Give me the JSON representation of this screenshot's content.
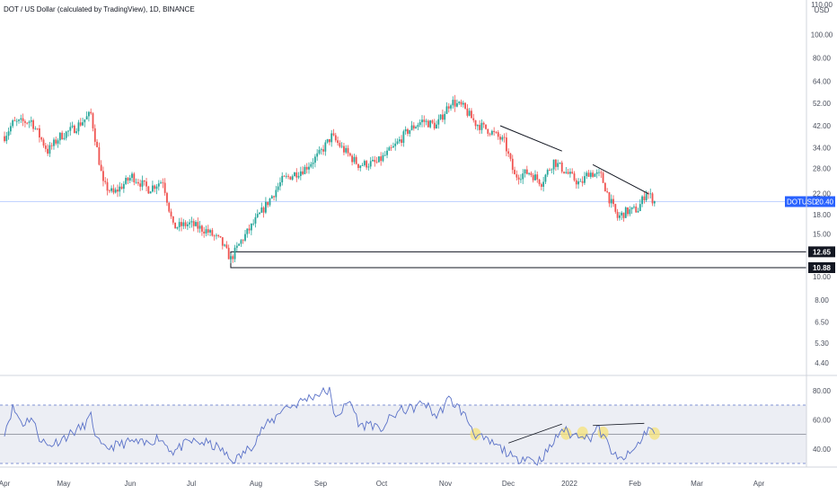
{
  "header": {
    "title": "DOT / US Dollar (calculated by TradingView), 1D, BINANCE",
    "currency": "USD"
  },
  "colors": {
    "up": "#26a69a",
    "down": "#ef5350",
    "price_line": "#2962ff",
    "rsi_line": "#5b72c8",
    "rsi_band_fill": "#eceef4",
    "rsi_band_border": "#5b72c8",
    "highlight": "#f5e27a"
  },
  "chart_data": [
    {
      "type": "candlestick",
      "title": "DOT / US Dollar (calculated by TradingView), 1D, BINANCE",
      "scale": "log",
      "y_ticks": [
        "110.00",
        "100.00",
        "80.00",
        "64.00",
        "52.00",
        "42.00",
        "34.00",
        "28.00",
        "22.00",
        "18.00",
        "15.00",
        "10.00",
        "8.00",
        "6.50",
        "5.30",
        "4.40"
      ],
      "x_ticks": [
        "Apr",
        "May",
        "Jun",
        "Jul",
        "Aug",
        "Sep",
        "Oct",
        "Nov",
        "Dec",
        "2022",
        "Feb",
        "Mar",
        "Apr"
      ],
      "current_price": {
        "label": "DOTUSD",
        "value": "20.40"
      },
      "levels": [
        {
          "label": "12.65",
          "value": 12.65
        },
        {
          "label": "10.88",
          "value": 10.88
        }
      ],
      "trendlines": [
        {
          "from": [
            "2021-11-28",
            42.0
          ],
          "to": [
            "2021-12-28",
            33.0
          ]
        },
        {
          "from": [
            "2022-01-12",
            29.0
          ],
          "to": [
            "2022-02-08",
            22.0
          ]
        }
      ],
      "series_path": [
        [
          "2021-04-01",
          38.0
        ],
        [
          "2021-04-05",
          43.0
        ],
        [
          "2021-04-14",
          44.0
        ],
        [
          "2021-04-22",
          33.0
        ],
        [
          "2021-04-28",
          38.0
        ],
        [
          "2021-05-05",
          41.0
        ],
        [
          "2021-05-13",
          47.0
        ],
        [
          "2021-05-19",
          24.0
        ],
        [
          "2021-05-24",
          22.0
        ],
        [
          "2021-06-02",
          26.0
        ],
        [
          "2021-06-10",
          23.0
        ],
        [
          "2021-06-17",
          25.0
        ],
        [
          "2021-06-22",
          16.0
        ],
        [
          "2021-06-30",
          16.5
        ],
        [
          "2021-07-08",
          15.5
        ],
        [
          "2021-07-15",
          14.0
        ],
        [
          "2021-07-20",
          11.8
        ],
        [
          "2021-07-25",
          14.0
        ],
        [
          "2021-08-03",
          18.0
        ],
        [
          "2021-08-14",
          25.0
        ],
        [
          "2021-08-25",
          28.0
        ],
        [
          "2021-09-01",
          32.0
        ],
        [
          "2021-09-07",
          38.0
        ],
        [
          "2021-09-12",
          34.0
        ],
        [
          "2021-09-20",
          29.0
        ],
        [
          "2021-09-29",
          29.5
        ],
        [
          "2021-10-07",
          34.0
        ],
        [
          "2021-10-14",
          40.0
        ],
        [
          "2021-10-21",
          44.0
        ],
        [
          "2021-10-28",
          42.0
        ],
        [
          "2021-11-04",
          53.0
        ],
        [
          "2021-11-10",
          50.0
        ],
        [
          "2021-11-16",
          43.0
        ],
        [
          "2021-11-23",
          40.0
        ],
        [
          "2021-11-30",
          36.0
        ],
        [
          "2021-12-05",
          26.0
        ],
        [
          "2021-12-12",
          27.0
        ],
        [
          "2021-12-18",
          24.5
        ],
        [
          "2021-12-24",
          30.0
        ],
        [
          "2021-12-30",
          27.0
        ],
        [
          "2022-01-06",
          24.0
        ],
        [
          "2022-01-10",
          27.0
        ],
        [
          "2022-01-16",
          26.0
        ],
        [
          "2022-01-20",
          21.0
        ],
        [
          "2022-01-24",
          17.5
        ],
        [
          "2022-01-28",
          18.5
        ],
        [
          "2022-02-03",
          19.0
        ],
        [
          "2022-02-07",
          22.5
        ],
        [
          "2022-02-11",
          20.4
        ]
      ]
    },
    {
      "type": "line",
      "title": "",
      "y_ticks": [
        "80.00",
        "60.00",
        "40.00"
      ],
      "band": [
        30,
        70
      ],
      "midline": 50,
      "trendlines": [
        {
          "from": [
            "2021-12-02",
            44.0
          ],
          "to": [
            "2021-12-28",
            57.0
          ]
        },
        {
          "from": [
            "2022-01-12",
            56.0
          ],
          "to": [
            "2022-02-06",
            57.5
          ]
        }
      ],
      "highlights": [
        {
          "x": "2021-11-16",
          "y": 50.0
        },
        {
          "x": "2021-12-30",
          "y": 50.5
        },
        {
          "x": "2022-01-07",
          "y": 51.0
        },
        {
          "x": "2022-01-17",
          "y": 51.0
        },
        {
          "x": "2022-02-11",
          "y": 50.5
        }
      ],
      "series_path": [
        [
          "2021-04-01",
          52
        ],
        [
          "2021-04-05",
          68
        ],
        [
          "2021-04-10",
          57
        ],
        [
          "2021-04-14",
          62
        ],
        [
          "2021-04-18",
          48
        ],
        [
          "2021-04-22",
          42
        ],
        [
          "2021-04-28",
          46
        ],
        [
          "2021-05-05",
          52
        ],
        [
          "2021-05-09",
          55
        ],
        [
          "2021-05-13",
          62
        ],
        [
          "2021-05-16",
          46
        ],
        [
          "2021-05-19",
          40
        ],
        [
          "2021-05-24",
          42
        ],
        [
          "2021-06-02",
          45
        ],
        [
          "2021-06-08",
          43
        ],
        [
          "2021-06-15",
          48
        ],
        [
          "2021-06-22",
          38
        ],
        [
          "2021-06-30",
          45
        ],
        [
          "2021-07-08",
          44
        ],
        [
          "2021-07-15",
          40
        ],
        [
          "2021-07-20",
          32
        ],
        [
          "2021-07-24",
          34
        ],
        [
          "2021-07-30",
          42
        ],
        [
          "2021-08-05",
          55
        ],
        [
          "2021-08-10",
          60
        ],
        [
          "2021-08-14",
          68
        ],
        [
          "2021-08-20",
          70
        ],
        [
          "2021-08-25",
          74
        ],
        [
          "2021-09-01",
          78
        ],
        [
          "2021-09-06",
          80
        ],
        [
          "2021-09-08",
          63
        ],
        [
          "2021-09-12",
          66
        ],
        [
          "2021-09-16",
          73
        ],
        [
          "2021-09-21",
          55
        ],
        [
          "2021-09-26",
          58
        ],
        [
          "2021-09-30",
          52
        ],
        [
          "2021-10-05",
          60
        ],
        [
          "2021-10-10",
          66
        ],
        [
          "2021-10-17",
          68
        ],
        [
          "2021-10-22",
          72
        ],
        [
          "2021-10-28",
          62
        ],
        [
          "2021-11-03",
          74
        ],
        [
          "2021-11-08",
          68
        ],
        [
          "2021-11-12",
          60
        ],
        [
          "2021-11-16",
          50
        ],
        [
          "2021-11-20",
          46
        ],
        [
          "2021-11-25",
          43
        ],
        [
          "2021-12-01",
          38
        ],
        [
          "2021-12-05",
          32
        ],
        [
          "2021-12-10",
          35
        ],
        [
          "2021-12-16",
          31
        ],
        [
          "2021-12-22",
          40
        ],
        [
          "2021-12-28",
          54
        ],
        [
          "2022-01-02",
          49
        ],
        [
          "2022-01-07",
          51
        ],
        [
          "2022-01-10",
          46
        ],
        [
          "2022-01-14",
          55
        ],
        [
          "2022-01-19",
          44
        ],
        [
          "2022-01-24",
          32
        ],
        [
          "2022-01-30",
          36
        ],
        [
          "2022-02-04",
          45
        ],
        [
          "2022-02-08",
          55
        ],
        [
          "2022-02-11",
          50
        ]
      ]
    }
  ]
}
